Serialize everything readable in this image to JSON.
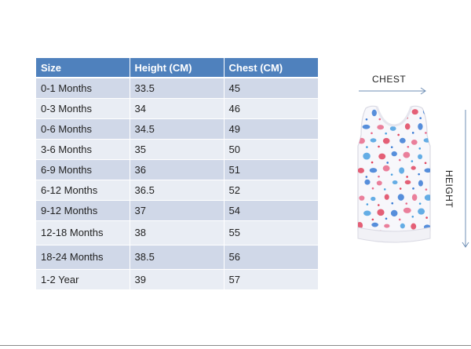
{
  "table": {
    "headers": [
      "Size",
      "Height (CM)",
      "Chest  (CM)"
    ],
    "rows": [
      [
        "0-1 Months",
        "33.5",
        "45"
      ],
      [
        "0-3 Months",
        "34",
        "46"
      ],
      [
        "0-6 Months",
        "34.5",
        "49"
      ],
      [
        "3-6 Months",
        "35",
        "50"
      ],
      [
        "6-9 Months",
        "36",
        "51"
      ],
      [
        "6-12 Months",
        "36.5",
        "52"
      ],
      [
        "9-12 Months",
        "37",
        "54"
      ],
      [
        "12-18 Months",
        "38",
        "55"
      ],
      [
        "18-24 Months",
        "38.5",
        "56"
      ],
      [
        "1-2 Year",
        "39",
        "57"
      ]
    ]
  },
  "diagram": {
    "chest_label": "CHEST",
    "height_label": "HEIGHT",
    "arrow_color": "#6f8fb5",
    "print_colors": [
      "#e0445e",
      "#3a7bd5",
      "#e86a8a",
      "#4aa0e0"
    ]
  }
}
